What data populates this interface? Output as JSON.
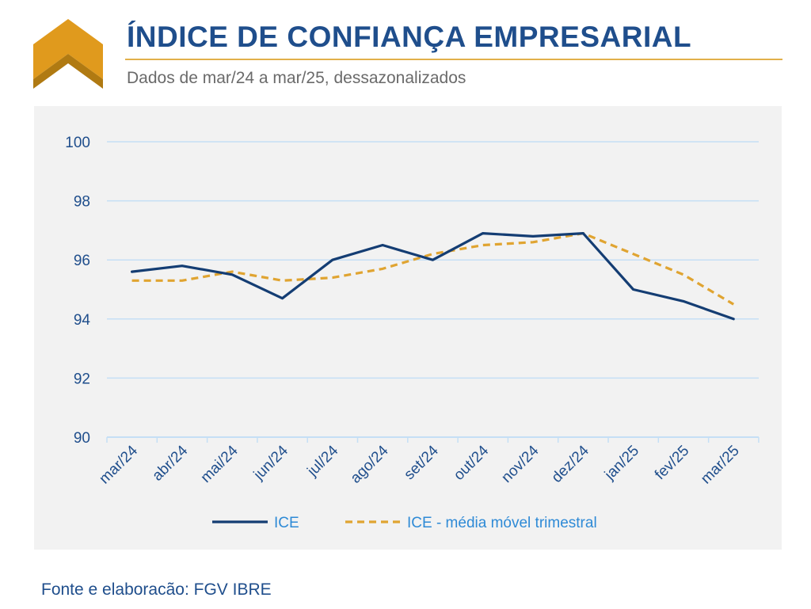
{
  "header": {
    "title": "ÍNDICE DE CONFIANÇA EMPRESARIAL",
    "subtitle": "Dados de mar/24 a mar/25, dessazonalizados"
  },
  "footer": {
    "source": "Fonte e elaboracão: FGV IBRE"
  },
  "colors": {
    "brand_blue": "#1f4e8c",
    "accent_orange": "#e09a1d",
    "series_ice": "#143d73",
    "series_mm3": "#e0a431",
    "grid": "#c5dff5",
    "legend_text": "#2e8ad6"
  },
  "chart_data": {
    "type": "line",
    "categories": [
      "mar/24",
      "abr/24",
      "mai/24",
      "jun/24",
      "jul/24",
      "ago/24",
      "set/24",
      "out/24",
      "nov/24",
      "dez/24",
      "jan/25",
      "fev/25",
      "mar/25"
    ],
    "series": [
      {
        "name": "ICE",
        "style": "solid",
        "color": "#143d73",
        "values": [
          95.6,
          95.8,
          95.5,
          94.7,
          96.0,
          96.5,
          96.0,
          96.9,
          96.8,
          96.9,
          95.0,
          94.6,
          94.0
        ]
      },
      {
        "name": "ICE - média móvel trimestral",
        "style": "dashed",
        "color": "#e0a431",
        "values": [
          95.3,
          95.3,
          95.6,
          95.3,
          95.4,
          95.7,
          96.2,
          96.5,
          96.6,
          96.9,
          96.2,
          95.5,
          94.5
        ]
      }
    ],
    "ylim": [
      90,
      100
    ],
    "yticks": [
      90,
      92,
      94,
      96,
      98,
      100
    ],
    "grid": true,
    "legend_position": "bottom"
  }
}
